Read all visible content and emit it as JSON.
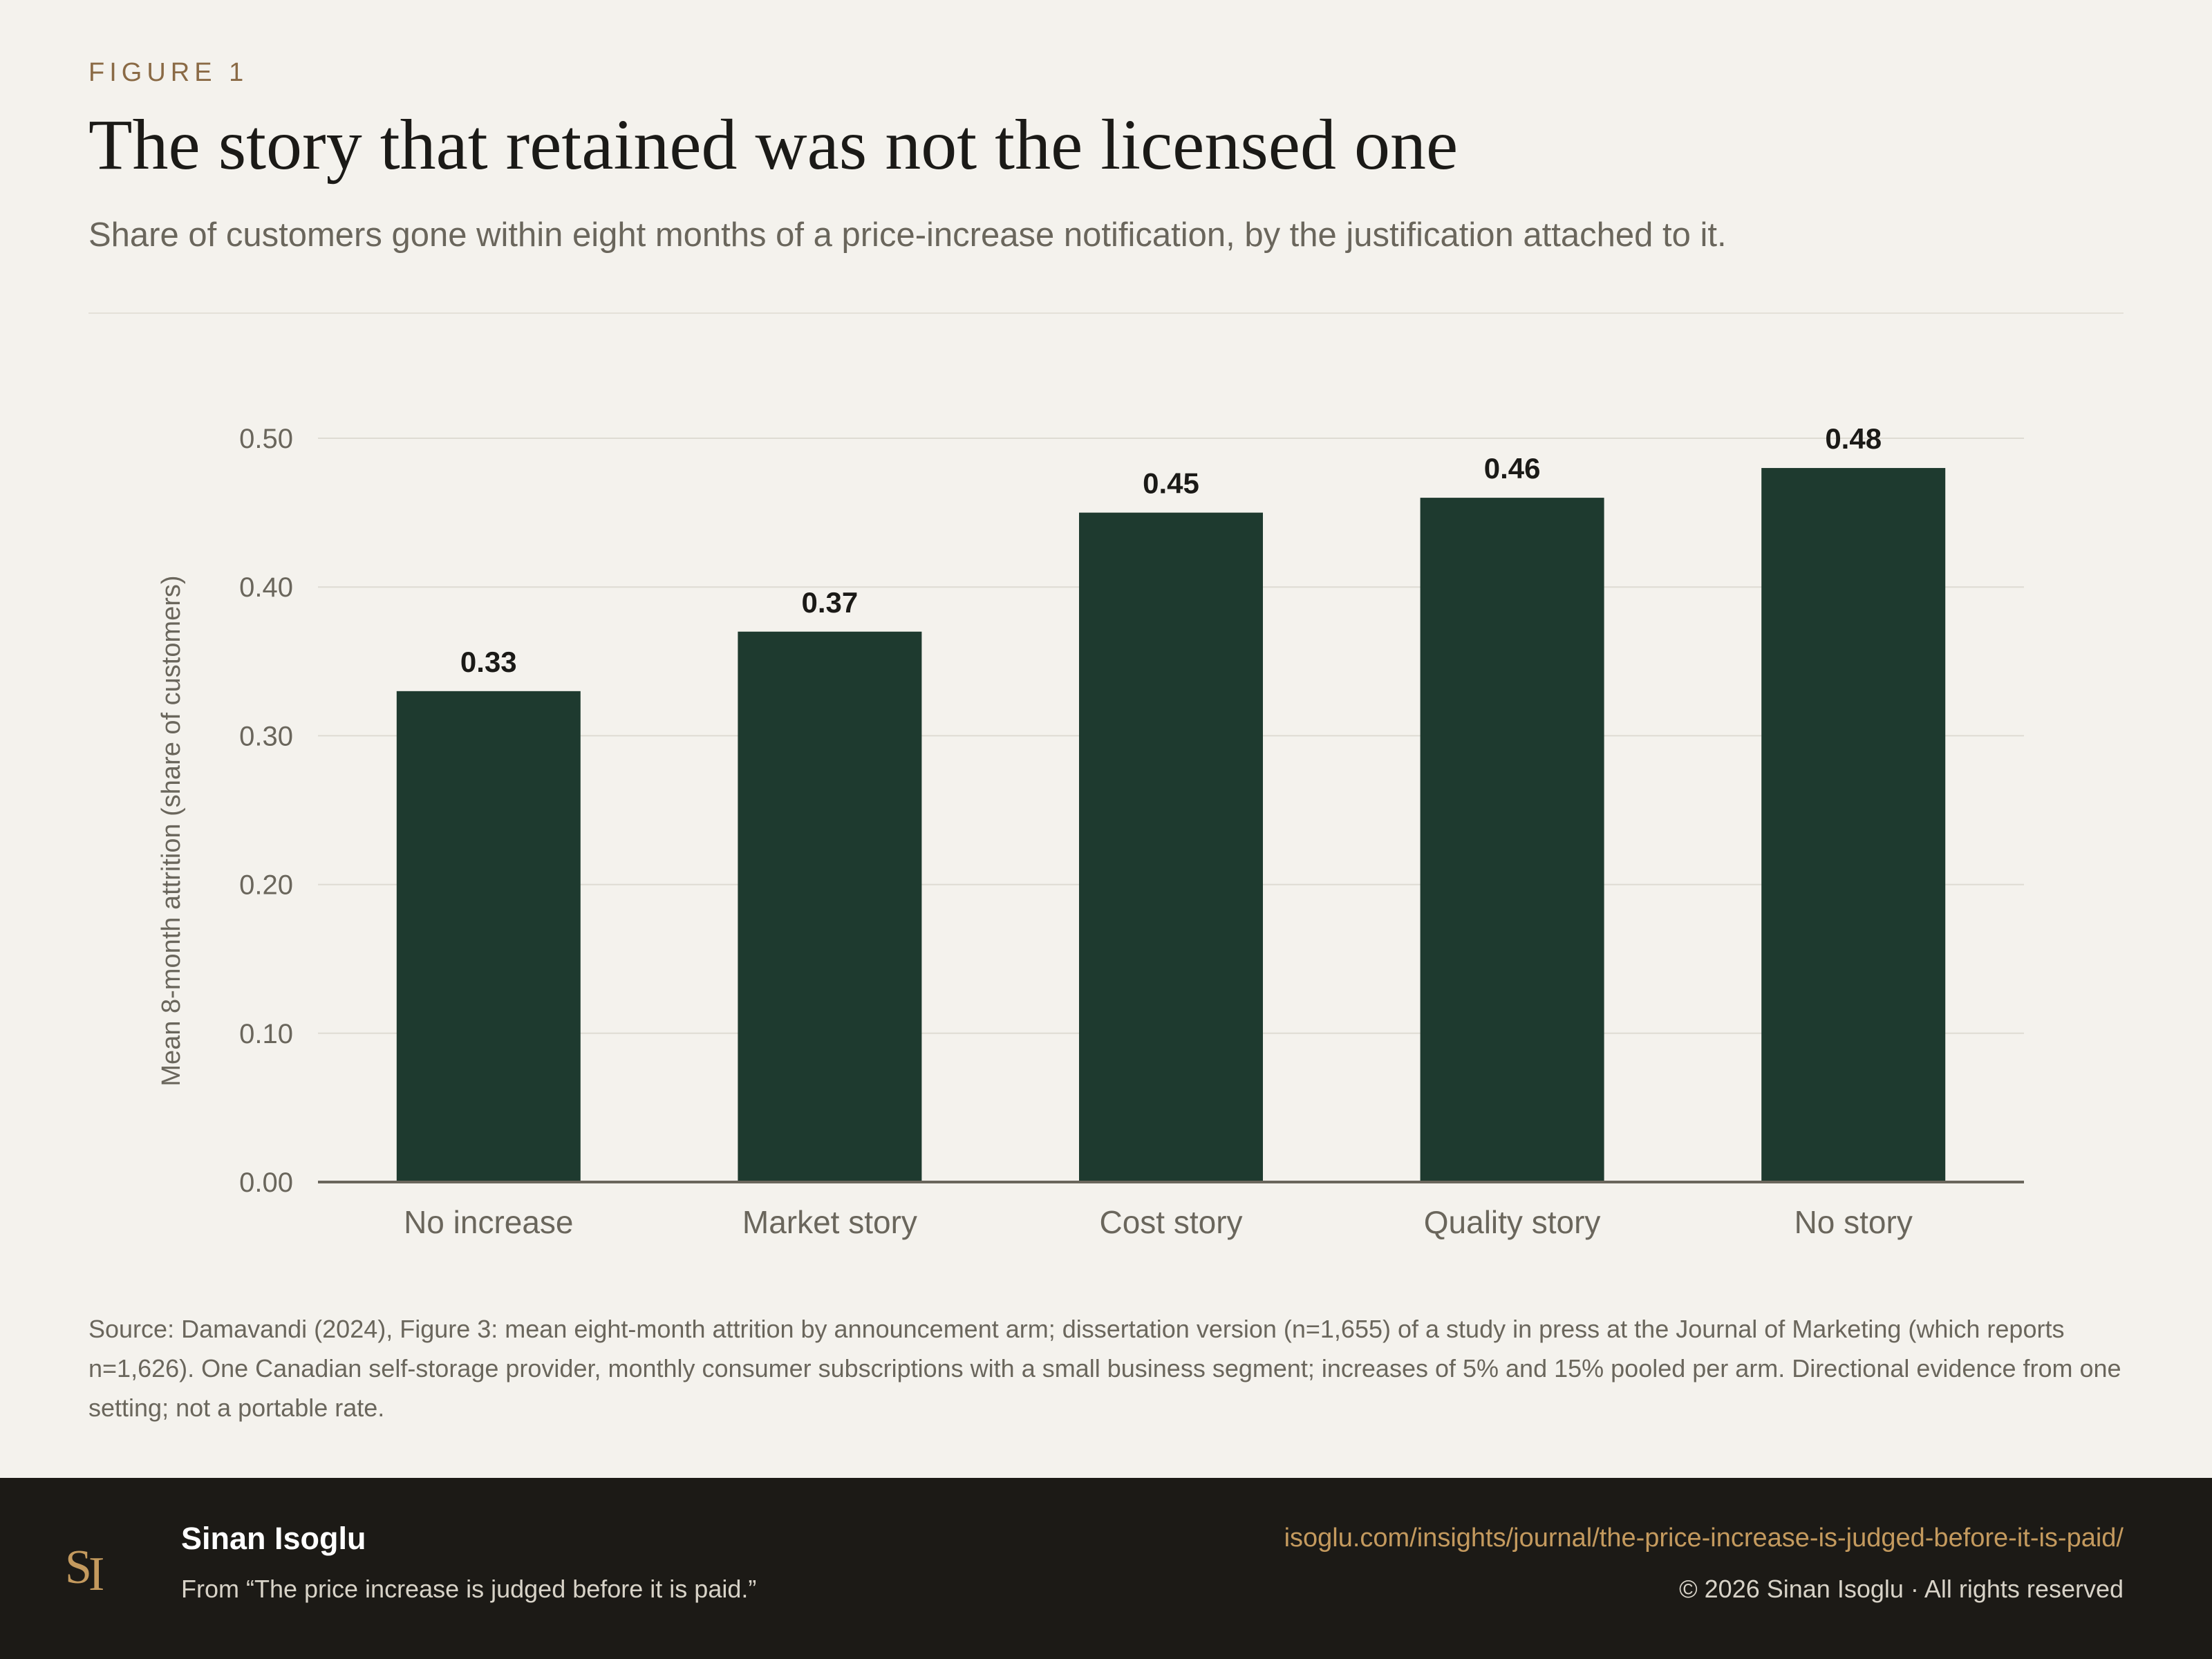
{
  "header": {
    "eyebrow": "FIGURE 1",
    "title": "The story that retained was not the licensed one",
    "subtitle": "Share of customers gone within eight months of a price-increase notification, by the justification attached to it."
  },
  "chart_data": {
    "type": "bar",
    "categories": [
      "No increase",
      "Market story",
      "Cost story",
      "Quality story",
      "No story"
    ],
    "values": [
      0.33,
      0.37,
      0.45,
      0.46,
      0.48
    ],
    "value_labels": [
      "0.33",
      "0.37",
      "0.45",
      "0.46",
      "0.48"
    ],
    "ylabel": "Mean 8-month attrition (share of customers)",
    "xlabel": "",
    "ylim": [
      0,
      0.5
    ],
    "yticks": [
      0,
      0.1,
      0.2,
      0.3,
      0.4,
      0.5
    ],
    "ytick_labels": [
      "0.00",
      "0.10",
      "0.20",
      "0.30",
      "0.40",
      "0.50"
    ],
    "grid": true,
    "bar_color": "#1e3a2f"
  },
  "source": "Source: Damavandi (2024), Figure 3: mean eight-month attrition by announcement arm; dissertation version (n=1,655) of a study in press at the Journal of Marketing (which reports n=1,626). One Canadian self-storage provider, monthly consumer subscriptions with a small business segment; increases of 5% and 15% pooled per arm. Directional evidence from one setting; not a portable rate.",
  "footer": {
    "logo_icon": "si-monogram-icon",
    "author": "Sinan Isoglu",
    "from": "From “The price increase is judged before it is paid.”",
    "url": "isoglu.com/insights/journal/the-price-increase-is-judged-before-it-is-paid/",
    "copyright": "© 2026 Sinan Isoglu · All rights reserved"
  }
}
